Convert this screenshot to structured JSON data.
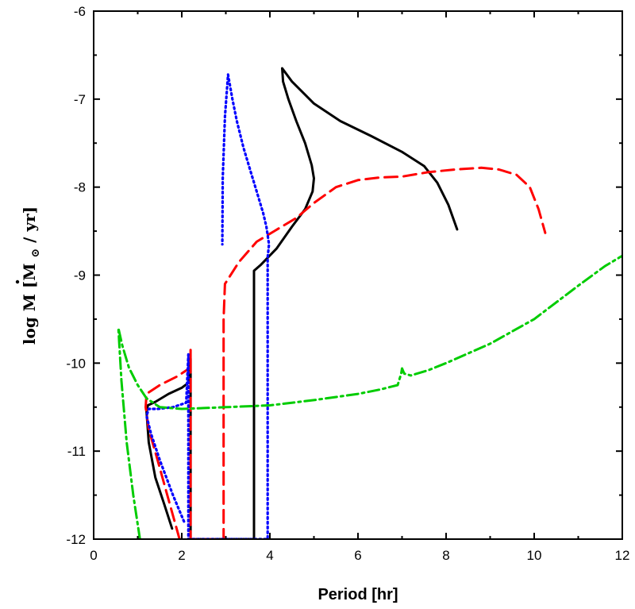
{
  "chart_data": {
    "type": "line",
    "xlabel": "Period [hr]",
    "ylabel": {
      "prefix": "log",
      "symbol": "M",
      "unit_open": "[M",
      "unit_sub": "⊙",
      "unit_close": "/ yr]"
    },
    "xlim": [
      0,
      12
    ],
    "ylim": [
      -12,
      -6
    ],
    "xticks": [
      0,
      2,
      4,
      6,
      8,
      10,
      12
    ],
    "yticks": [
      -12,
      -11,
      -10,
      -9,
      -8,
      -7,
      -6
    ],
    "x_tick_labels": [
      "0",
      "2",
      "4",
      "6",
      "8",
      "10",
      "12"
    ],
    "y_tick_labels": [
      "-12",
      "-11",
      "-10",
      "-9",
      "-8",
      "-7",
      "-6"
    ],
    "grid": false,
    "legend": "none",
    "series": [
      {
        "color": "#000000",
        "style": "solid",
        "x": [
          1.78,
          1.6,
          1.4,
          1.25,
          1.2,
          1.23,
          1.4,
          1.7,
          2.0,
          2.16,
          2.2,
          2.2,
          2.2,
          2.2,
          2.2,
          3.64,
          3.64,
          3.64,
          3.64,
          3.8,
          4.15,
          4.5,
          4.8,
          4.97,
          5.0,
          4.95,
          4.8,
          4.6,
          4.42,
          4.3,
          4.28,
          4.5,
          5.0,
          5.6,
          6.3,
          7.0,
          7.5,
          7.8,
          8.05,
          8.25
        ],
        "y": [
          -11.88,
          -11.6,
          -11.3,
          -10.9,
          -10.55,
          -10.48,
          -10.44,
          -10.35,
          -10.28,
          -10.22,
          -9.95,
          -10.4,
          -11.2,
          -12.0,
          -12.0,
          -12.0,
          -11.5,
          -10.2,
          -8.95,
          -8.88,
          -8.7,
          -8.45,
          -8.25,
          -8.05,
          -7.9,
          -7.75,
          -7.5,
          -7.25,
          -7.0,
          -6.8,
          -6.65,
          -6.8,
          -7.05,
          -7.25,
          -7.42,
          -7.6,
          -7.76,
          -7.95,
          -8.2,
          -8.48
        ]
      },
      {
        "color": "#ff0000",
        "style": "dashed",
        "x": [
          1.95,
          1.7,
          1.45,
          1.25,
          1.18,
          1.2,
          1.5,
          1.9,
          2.2,
          2.2,
          2.2,
          2.2,
          2.95,
          2.95,
          2.95,
          2.98,
          3.3,
          3.7,
          4.1,
          4.6,
          5.0,
          5.5,
          6.0,
          6.5,
          7.0,
          7.6,
          8.2,
          8.8,
          9.2,
          9.6,
          9.9,
          10.1,
          10.25
        ],
        "y": [
          -12.0,
          -11.55,
          -11.1,
          -10.75,
          -10.5,
          -10.35,
          -10.25,
          -10.15,
          -10.05,
          -9.85,
          -11.0,
          -12.0,
          -12.0,
          -10.5,
          -9.5,
          -9.1,
          -8.85,
          -8.62,
          -8.5,
          -8.35,
          -8.18,
          -8.0,
          -7.92,
          -7.89,
          -7.88,
          -7.83,
          -7.8,
          -7.78,
          -7.8,
          -7.86,
          -8.0,
          -8.25,
          -8.52
        ],
        "dash": "16 8"
      },
      {
        "color": "#0000ff",
        "style": "dotted",
        "x": [
          2.05,
          1.8,
          1.5,
          1.3,
          1.2,
          1.25,
          1.45,
          1.8,
          2.1,
          2.15,
          2.15,
          2.15,
          3.95,
          3.95,
          3.95,
          3.98,
          3.92,
          3.85,
          3.7,
          3.55,
          3.4,
          3.25,
          3.15,
          3.05,
          2.98,
          2.93,
          2.92
        ],
        "y": [
          -11.8,
          -11.5,
          -11.1,
          -10.8,
          -10.6,
          -10.52,
          -10.52,
          -10.5,
          -10.45,
          -9.9,
          -11.0,
          -12.0,
          -12.0,
          -10.5,
          -8.8,
          -8.65,
          -8.45,
          -8.3,
          -8.05,
          -7.8,
          -7.55,
          -7.25,
          -7.0,
          -6.72,
          -7.2,
          -7.9,
          -8.65
        ],
        "dash": "2 4"
      },
      {
        "color": "#00cc00",
        "style": "dash-dot",
        "x": [
          1.05,
          0.9,
          0.75,
          0.63,
          0.56,
          0.65,
          0.8,
          1.0,
          1.2,
          1.5,
          2.0,
          3.0,
          4.0,
          5.0,
          6.0,
          6.5,
          6.9,
          6.98,
          7.0,
          7.05,
          7.2,
          7.6,
          8.0,
          9.0,
          10.0,
          11.0,
          11.6,
          12.0
        ],
        "y": [
          -12.0,
          -11.5,
          -10.9,
          -10.2,
          -9.6,
          -9.8,
          -10.05,
          -10.25,
          -10.4,
          -10.5,
          -10.52,
          -10.5,
          -10.48,
          -10.42,
          -10.35,
          -10.3,
          -10.25,
          -10.12,
          -10.06,
          -10.12,
          -10.14,
          -10.08,
          -10.0,
          -9.78,
          -9.5,
          -9.12,
          -8.9,
          -8.78
        ],
        "dash": "14 5 3 5"
      }
    ]
  }
}
